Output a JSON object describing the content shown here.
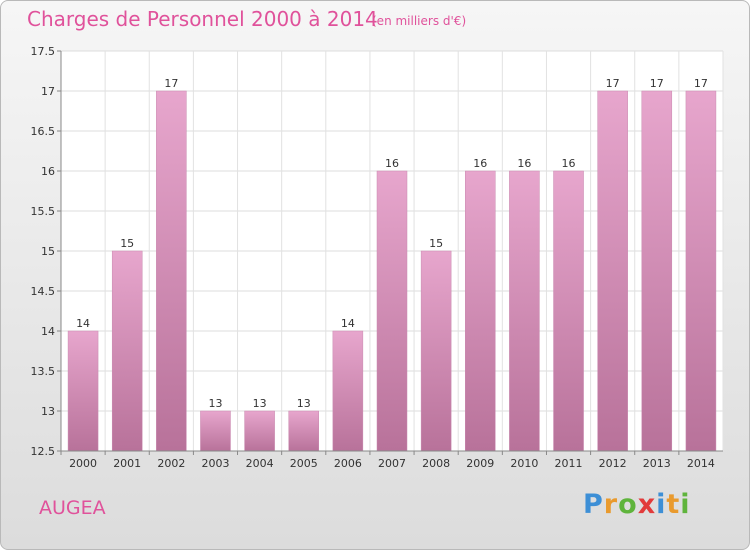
{
  "header": {
    "title": "Charges de Personnel 2000 à 2014",
    "subtitle": "(en milliers d'€)"
  },
  "footer": {
    "commune": "AUGEA",
    "logo_letters": [
      "P",
      "r",
      "o",
      "x",
      "i",
      "t",
      "i"
    ],
    "logo_colors": [
      "#3d8fd6",
      "#e99a2d",
      "#5fb43c",
      "#e23b3b",
      "#3d8fd6",
      "#e99a2d",
      "#5fb43c"
    ]
  },
  "chart_data": {
    "type": "bar",
    "title": "Charges de Personnel 2000 à 2014",
    "subtitle": "(en milliers d'€)",
    "categories": [
      "2000",
      "2001",
      "2002",
      "2003",
      "2004",
      "2005",
      "2006",
      "2007",
      "2008",
      "2009",
      "2010",
      "2011",
      "2012",
      "2013",
      "2014"
    ],
    "values": [
      14,
      15,
      17,
      13,
      13,
      13,
      14,
      16,
      15,
      16,
      16,
      16,
      17,
      17,
      17
    ],
    "data_labels": [
      "14",
      "15",
      "17",
      "13",
      "13",
      "13",
      "14",
      "16",
      "15",
      "16",
      "16",
      "16",
      "17",
      "17",
      "17"
    ],
    "ylim": [
      12.5,
      17.5
    ],
    "yticks": [
      "12.5",
      "13",
      "13.5",
      "14",
      "14.5",
      "15",
      "15.5",
      "16",
      "16.5",
      "17",
      "17.5"
    ],
    "grid": true,
    "bar_color": "#d98cb8"
  }
}
